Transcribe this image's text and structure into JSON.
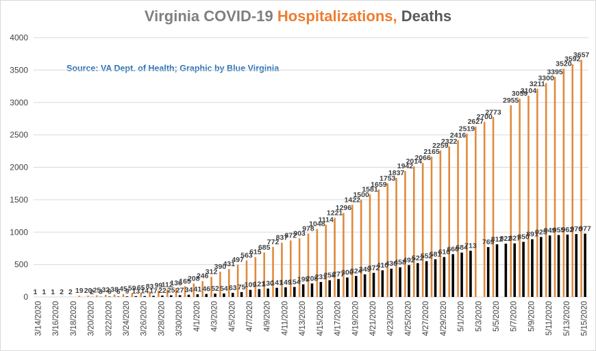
{
  "colors": {
    "title_primary": "#7f7f7f",
    "title_accent": "#ed7d31",
    "title_dark": "#595959",
    "hospitalizations": "#e08a3c",
    "deaths": "#000000",
    "source": "#2e75b6",
    "grid": "#d9d9d9"
  },
  "chart_data": {
    "type": "bar",
    "title_parts": [
      "Virginia COVID-19 ",
      "Hospitalizations,",
      " Deaths"
    ],
    "source_note": "Source: VA Dept. of Health; Graphic by Blue Virginia",
    "xlabel": "",
    "ylabel": "",
    "ylim": [
      0,
      4000
    ],
    "yticks": [
      0,
      500,
      1000,
      1500,
      2000,
      2500,
      3000,
      3500,
      4000
    ],
    "grid": true,
    "legend": "none",
    "categories": [
      "3/14/2020",
      "3/15/2020",
      "3/16/2020",
      "3/17/2020",
      "3/18/2020",
      "3/19/2020",
      "3/20/2020",
      "3/21/2020",
      "3/22/2020",
      "3/23/2020",
      "3/24/2020",
      "3/25/2020",
      "3/26/2020",
      "3/27/2020",
      "3/28/2020",
      "3/29/2020",
      "3/30/2020",
      "3/31/2020",
      "4/1/2020",
      "4/2/2020",
      "4/3/2020",
      "4/4/2020",
      "4/5/2020",
      "4/6/2020",
      "4/7/2020",
      "4/8/2020",
      "4/9/2020",
      "4/10/2020",
      "4/11/2020",
      "4/12/2020",
      "4/13/2020",
      "4/14/2020",
      "4/15/2020",
      "4/16/2020",
      "4/17/2020",
      "4/18/2020",
      "4/19/2020",
      "4/20/2020",
      "4/21/2020",
      "4/22/2020",
      "4/23/2020",
      "4/24/2020",
      "4/25/2020",
      "4/26/2020",
      "4/27/2020",
      "4/28/2020",
      "4/29/2020",
      "4/30/2020",
      "5/1/2020",
      "5/2/2020",
      "5/3/2020",
      "5/4/2020",
      "5/5/2020",
      "5/6/2020",
      "5/7/2020",
      "5/8/2020",
      "5/9/2020",
      "5/10/2020",
      "5/11/2020",
      "5/12/2020",
      "5/13/2020",
      "5/14/2020",
      "5/15/2020"
    ],
    "tick_labels": [
      "3/14/2020",
      "3/16/2020",
      "3/18/2020",
      "3/20/2020",
      "3/22/2020",
      "3/24/2020",
      "3/26/2020",
      "3/28/2020",
      "3/30/2020",
      "4/1/2020",
      "4/3/2020",
      "4/5/2020",
      "4/7/2020",
      "4/9/2020",
      "4/11/2020",
      "4/13/2020",
      "4/15/2020",
      "4/17/2020",
      "4/19/2020",
      "4/21/2020",
      "4/23/2020",
      "4/25/2020",
      "4/27/2020",
      "4/29/2020",
      "5/1/2020",
      "5/3/2020",
      "5/5/2020",
      "5/7/2020",
      "5/9/2020",
      "5/11/2020",
      "5/13/2020",
      "5/15/2020"
    ],
    "series": [
      {
        "values": [
          1,
          1,
          1,
          2,
          2,
          19,
          20,
          25,
          32,
          38,
          45,
          59,
          65,
          83,
          99,
          112,
          136,
          165,
          208,
          246,
          312,
          390,
          431,
          497,
          563,
          615,
          685,
          772,
          837,
          872,
          903,
          978,
          1048,
          1114,
          1221,
          1296,
          1422,
          1500,
          1581,
          1659,
          1753,
          1837,
          1942,
          2014,
          2066,
          2165,
          2259,
          2322,
          2416,
          2519,
          2627,
          2700,
          2773,
          null,
          2955,
          3059,
          3104,
          3211,
          3300,
          3395,
          3520,
          3592,
          3657
        ],
        "labels": [
          "1",
          "1",
          "1",
          "2",
          "2",
          "19",
          "20",
          "25",
          "32",
          "38",
          "45",
          "59",
          "65",
          "83",
          "99",
          "112",
          "136",
          "165",
          "208",
          "246",
          "312",
          "390",
          "431",
          "497",
          "563",
          "615",
          "685",
          "772",
          "837",
          "872",
          "903",
          "978",
          "1048",
          "1114",
          "1221",
          "1296",
          "1422",
          "1500",
          "1581",
          "1659",
          "1753",
          "1837",
          "1942",
          "2014",
          "2066",
          "2165",
          "2259",
          "2322",
          "2416",
          "2519",
          "2627",
          "2700",
          "2773",
          "",
          "2955",
          "3059",
          "3104",
          "3211",
          "3300",
          "3395",
          "3520",
          "3592",
          "3657"
        ]
      },
      {
        "values": [
          0,
          0,
          0,
          0,
          0,
          0,
          2,
          3,
          6,
          6,
          9,
          13,
          14,
          17,
          22,
          25,
          27,
          34,
          41,
          46,
          52,
          54,
          63,
          75,
          109,
          121,
          130,
          141,
          149,
          154,
          195,
          208,
          231,
          258,
          277,
          300,
          324,
          349,
          372,
          410,
          436,
          458,
          492,
          522,
          552,
          581,
          616,
          660,
          684,
          713,
          null,
          769,
          812,
          822,
          827,
          850,
          891,
          925,
          949,
          955,
          962,
          970,
          977
        ],
        "labels": [
          "",
          "",
          "",
          "",
          "",
          "",
          "2",
          "3",
          "6",
          "6",
          "9",
          "13",
          "14",
          "17",
          "22",
          "25",
          "27",
          "34",
          "41",
          "46",
          "52",
          "54",
          "63",
          "75",
          "109",
          "121",
          "130",
          "141",
          "149",
          "154",
          "195",
          "208",
          "231",
          "258",
          "277",
          "300",
          "324",
          "349",
          "372",
          "410",
          "436",
          "458",
          "492",
          "522",
          "552",
          "581",
          "616",
          "660",
          "684",
          "713",
          "",
          "769",
          "812",
          "822",
          "827",
          "850",
          "891",
          "925",
          "949",
          "955",
          "962",
          "970",
          "977"
        ]
      }
    ]
  }
}
